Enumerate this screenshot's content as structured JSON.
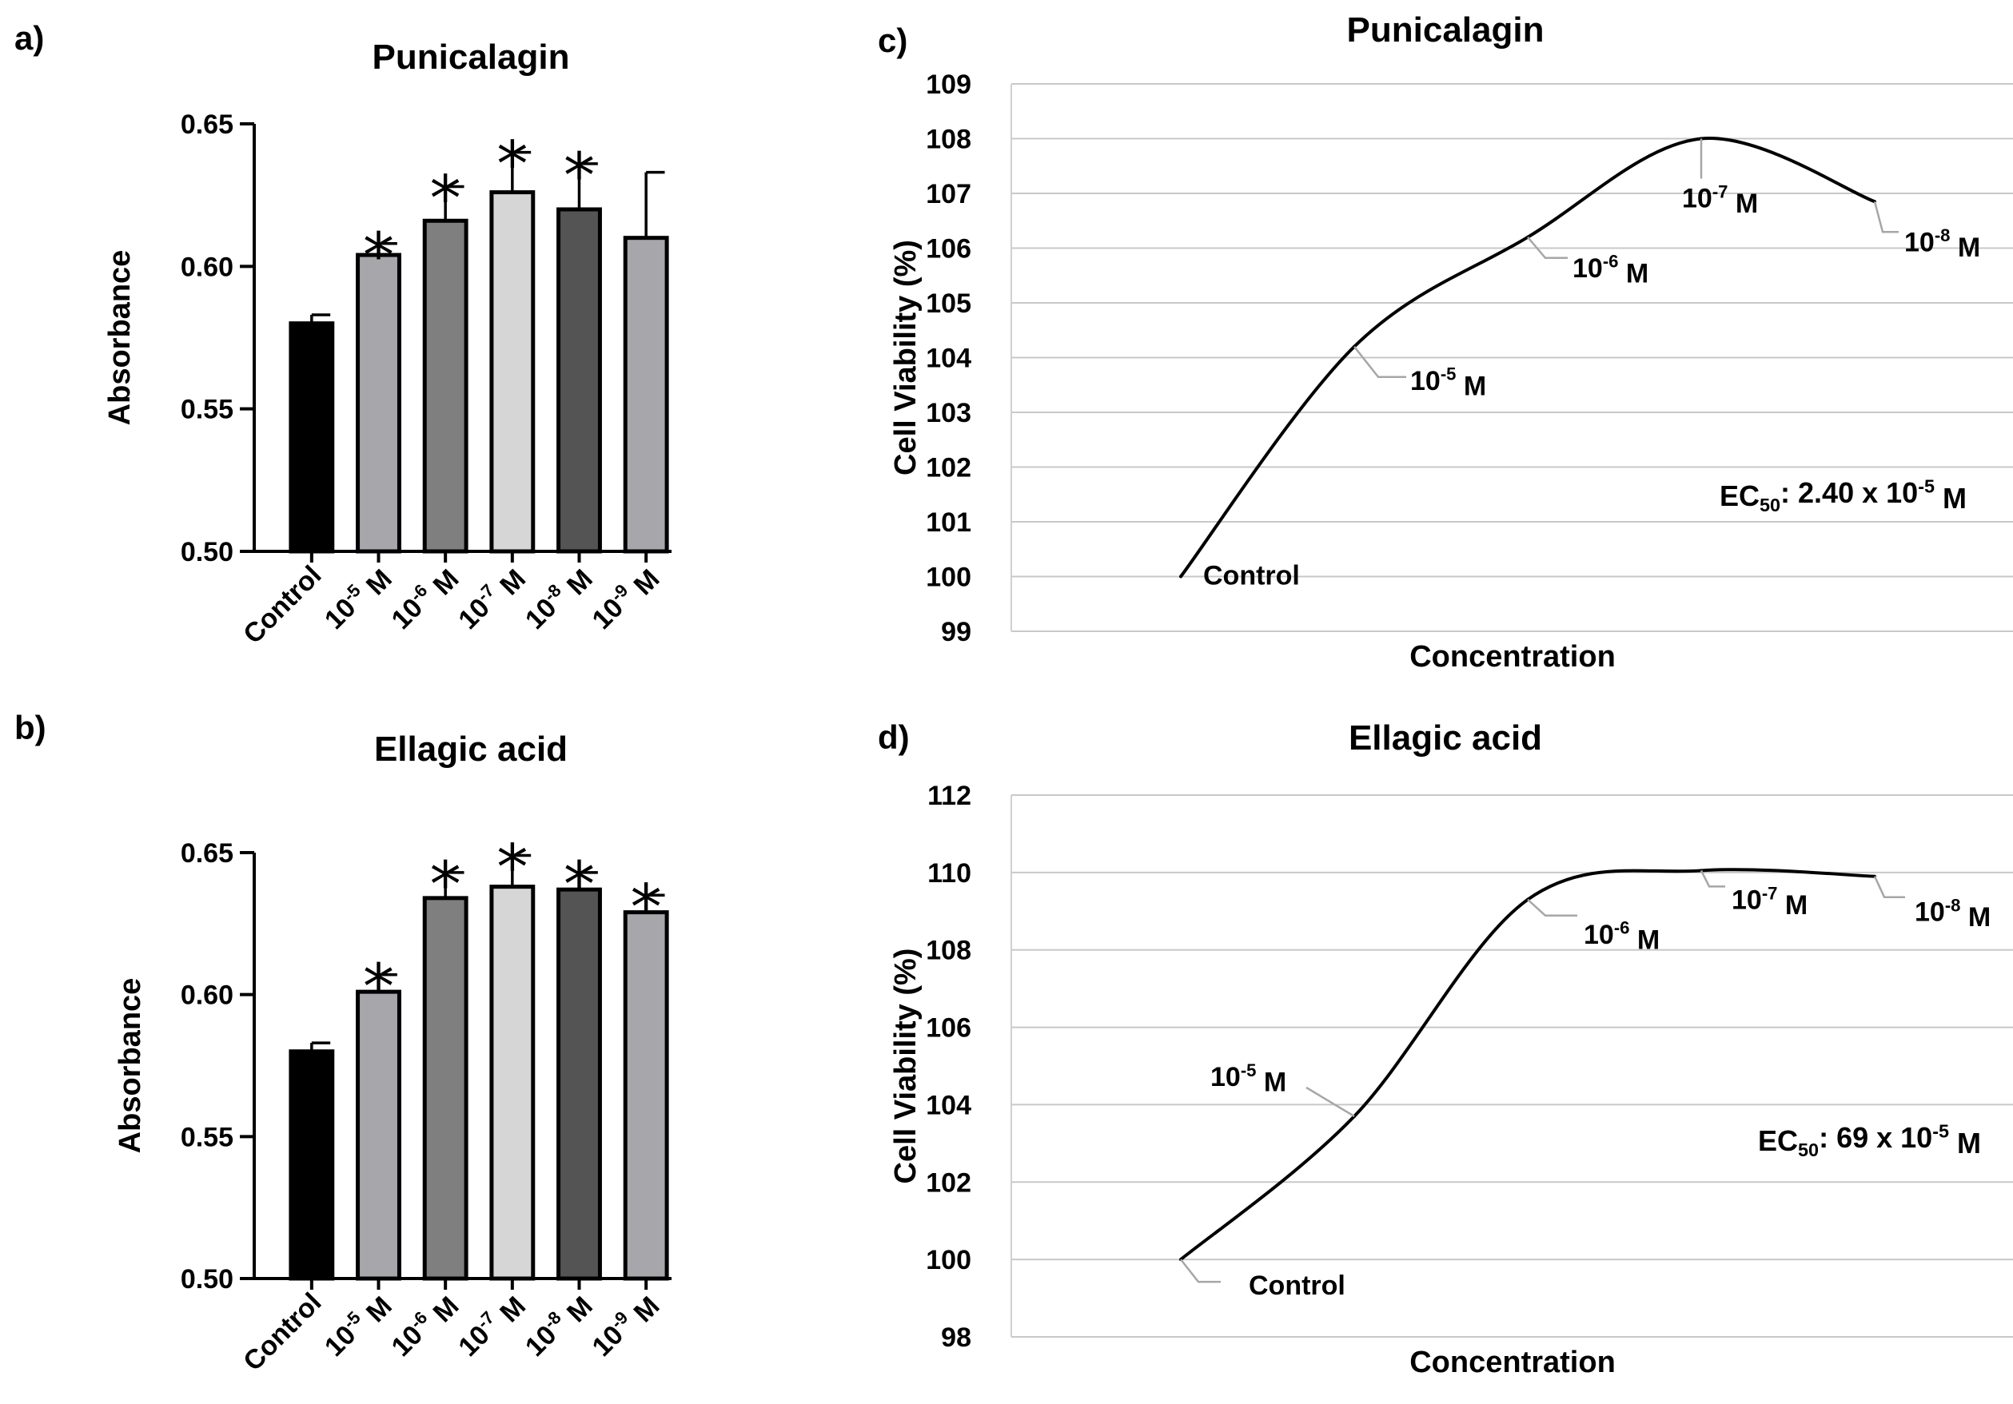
{
  "colors": {
    "control": "#000000",
    "m5": "#a6a6ab",
    "m6": "#7f7f7f",
    "m7": "#d6d6d6",
    "m8": "#545454",
    "m9": "#a6a6ab",
    "curve": "#000000",
    "leader": "#a6a6a6",
    "grid": "#c8c8c8"
  },
  "chart_data": [
    {
      "panel": "a)",
      "type": "bar",
      "title": "Punicalagin",
      "ylabel": "Absorbance",
      "ylim": [
        0.5,
        0.65
      ],
      "yticks": [
        "0.50",
        "0.55",
        "0.60",
        "0.65"
      ],
      "categories": [
        "Control",
        "10-5 M",
        "10-6 M",
        "10-7 M",
        "10-8 M",
        "10-9 M"
      ],
      "values": [
        0.58,
        0.604,
        0.616,
        0.626,
        0.62,
        0.61
      ],
      "errors": [
        0.003,
        0.004,
        0.012,
        0.014,
        0.016,
        0.023
      ],
      "significant": [
        false,
        true,
        true,
        true,
        true,
        false
      ],
      "star_symbol": "*"
    },
    {
      "panel": "b)",
      "type": "bar",
      "title": "Ellagic acid",
      "ylabel": "Absorbance",
      "ylim": [
        0.5,
        0.65
      ],
      "yticks": [
        "0.50",
        "0.55",
        "0.60",
        "0.65"
      ],
      "categories": [
        "Control",
        "10-5 M",
        "10-6 M",
        "10-7 M",
        "10-8 M",
        "10-9 M"
      ],
      "values": [
        0.58,
        0.601,
        0.634,
        0.638,
        0.637,
        0.629
      ],
      "errors": [
        0.003,
        0.006,
        0.009,
        0.011,
        0.006,
        0.006
      ],
      "significant": [
        false,
        true,
        true,
        true,
        true,
        true
      ],
      "star_symbol": "*"
    },
    {
      "panel": "c)",
      "type": "line",
      "title": "Punicalagin",
      "xlabel": "Concentration",
      "ylabel": "Cell Viability (%)",
      "ylim": [
        99,
        109
      ],
      "yticks": [
        "99",
        "100",
        "101",
        "102",
        "103",
        "104",
        "105",
        "106",
        "107",
        "108",
        "109"
      ],
      "points": [
        {
          "label": "Control",
          "y": 100
        },
        {
          "label": "10-5 M",
          "y": 104.2
        },
        {
          "label": "10-6 M",
          "y": 106.2
        },
        {
          "label": "10-7 M",
          "y": 108
        },
        {
          "label": "10-8 M",
          "y": 106.85
        }
      ],
      "ec50": "EC50: 2.40 x 10-5 M"
    },
    {
      "panel": "d)",
      "type": "line",
      "title": "Ellagic acid",
      "xlabel": "Concentration",
      "ylabel": "Cell Viability (%)",
      "ylim": [
        98,
        112
      ],
      "yticks": [
        "98",
        "100",
        "102",
        "104",
        "106",
        "108",
        "110",
        "112"
      ],
      "points": [
        {
          "label": "Control",
          "y": 100
        },
        {
          "label": "10-5 M",
          "y": 103.7
        },
        {
          "label": "10-6 M",
          "y": 109.3
        },
        {
          "label": "10-7 M",
          "y": 110.05
        },
        {
          "label": "10-8 M",
          "y": 109.9
        }
      ],
      "ec50": "EC50: 69 x 10-5 M"
    }
  ]
}
